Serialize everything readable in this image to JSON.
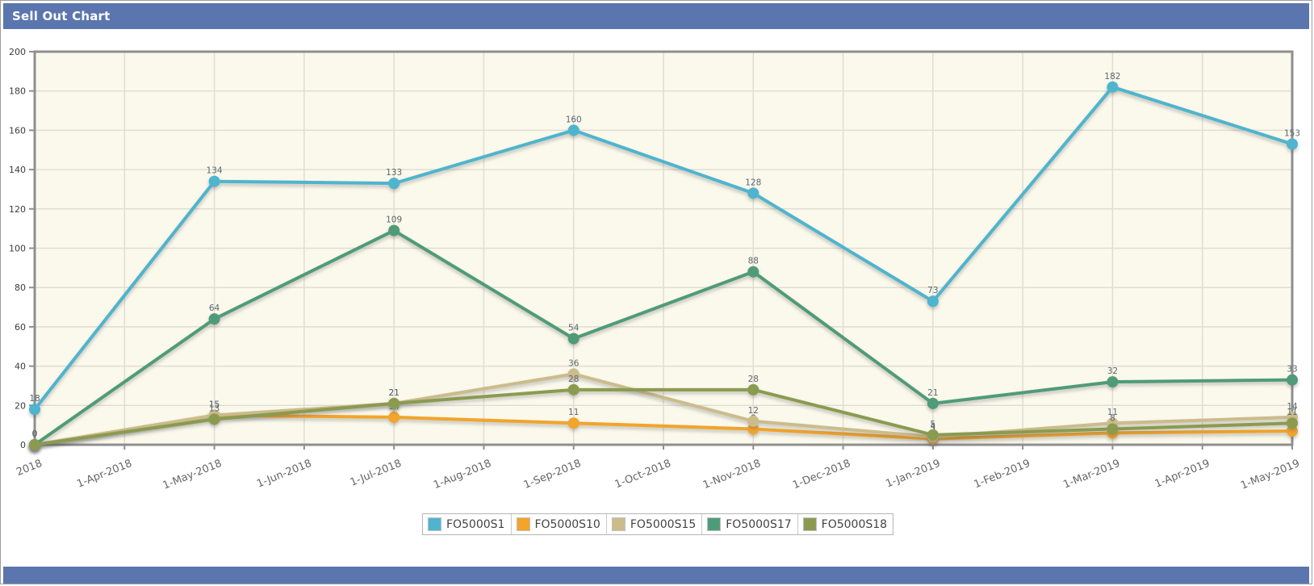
{
  "panel": {
    "title": "Sell Out Chart"
  },
  "colors": {
    "header_bg": "#5B76AE",
    "plot_bg": "#FBF9EC",
    "grid": "#E0DDD3",
    "axis": "#8F8F8F",
    "y_label_color": "#3C3C3C",
    "x_label_color": "#666666",
    "value_label_color": "#5B6770",
    "legend_border": "#B5B5B5",
    "legend_text": "#444444"
  },
  "chart_data": {
    "type": "line",
    "title": "Sell Out Chart",
    "x_labels": [
      "2018",
      "1-Apr-2018",
      "1-May-2018",
      "1-Jun-2018",
      "1-Jul-2018",
      "1-Aug-2018",
      "1-Sep-2018",
      "1-Oct-2018",
      "1-Nov-2018",
      "1-Dec-2018",
      "1-Jan-2019",
      "1-Feb-2019",
      "1-Mar-2019",
      "1-Apr-2019",
      "1-May-2019"
    ],
    "data_tick_indices": [
      0,
      2,
      4,
      6,
      8,
      10,
      12,
      14
    ],
    "ylim": [
      0,
      200
    ],
    "y_ticks": [
      0,
      20,
      40,
      60,
      80,
      100,
      120,
      140,
      160,
      180,
      200
    ],
    "grid": true,
    "legend_position": "bottom",
    "point_labels_shown": true,
    "series": [
      {
        "name": "FO5000S1",
        "color": "#4FB4CE",
        "values": [
          18,
          134,
          133,
          160,
          128,
          73,
          182,
          153
        ]
      },
      {
        "name": "FO5000S10",
        "color": "#F2A42B",
        "values": [
          0,
          15,
          14,
          11,
          8,
          3,
          6,
          7
        ]
      },
      {
        "name": "FO5000S15",
        "color": "#CBBC8C",
        "values": [
          0,
          15,
          21,
          36,
          12,
          4,
          11,
          14
        ]
      },
      {
        "name": "FO5000S17",
        "color": "#4F9B78",
        "values": [
          0,
          64,
          109,
          54,
          88,
          21,
          32,
          33
        ]
      },
      {
        "name": "FO5000S18",
        "color": "#8A9B50",
        "values": [
          0,
          13,
          21,
          28,
          28,
          5,
          8,
          11
        ]
      }
    ]
  }
}
